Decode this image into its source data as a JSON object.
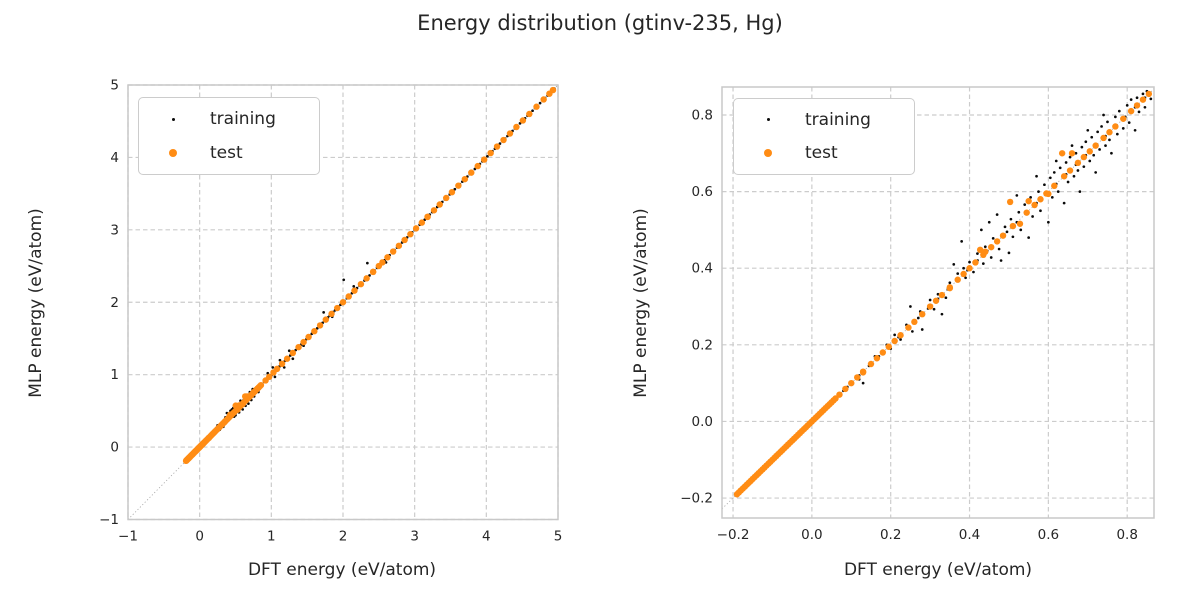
{
  "title": "Energy distribution (gtinv-235, Hg)",
  "colors": {
    "training": "#0a0a0a",
    "test": "#ff8c14",
    "grid": "#cccccc",
    "spine": "#c8c8c8",
    "text": "#262626",
    "diagonal_line": "#a6a6a6",
    "background": "#ffffff"
  },
  "legend": {
    "items": [
      {
        "label": "training",
        "marker": "small-black-dot"
      },
      {
        "label": "test",
        "marker": "orange-dot"
      }
    ]
  },
  "chart_data": {
    "type": "scatter",
    "title": "Energy distribution (gtinv-235, Hg)",
    "description": "Two parity scatter panels of MLP vs DFT energy; both panels show the same two series, right panel is a zoom of the low-energy region. Points with y equal to x are stored in on_diagonal_x; deviating points in scatter_points.",
    "panels": [
      {
        "xlabel": "DFT energy (eV/atom)",
        "ylabel": "MLP energy (eV/atom)",
        "xlim": [
          -1,
          5
        ],
        "ylim": [
          -1,
          5
        ],
        "xticks": [
          -1,
          0,
          1,
          2,
          3,
          4,
          5
        ],
        "xtick_labels": [
          "−1",
          "0",
          "1",
          "2",
          "3",
          "4",
          "5"
        ],
        "yticks": [
          -1,
          0,
          1,
          2,
          3,
          4,
          5
        ],
        "ytick_labels": [
          "−1",
          "0",
          "1",
          "2",
          "3",
          "4",
          "5"
        ],
        "grid": true,
        "diagonal_reference_line": true,
        "legend_position": "upper left"
      },
      {
        "xlabel": "DFT energy (eV/atom)",
        "ylabel": "MLP energy (eV/atom)",
        "xlim": [
          -0.228,
          0.868
        ],
        "ylim": [
          -0.252,
          0.873
        ],
        "xticks": [
          -0.2,
          0.0,
          0.2,
          0.4,
          0.6,
          0.8
        ],
        "xtick_labels": [
          "−0.2",
          "0.0",
          "0.2",
          "0.4",
          "0.6",
          "0.8"
        ],
        "yticks": [
          -0.2,
          0.0,
          0.2,
          0.4,
          0.6,
          0.8
        ],
        "ytick_labels": [
          "−0.2",
          "0.0",
          "0.2",
          "0.4",
          "0.6",
          "0.8"
        ],
        "grid": true,
        "diagonal_reference_line": true,
        "legend_position": "upper left"
      }
    ],
    "series": [
      {
        "name": "training",
        "color": "#0a0a0a",
        "marker_radius_px": 1.35,
        "on_diagonal_x": [
          -0.19,
          -0.18,
          -0.17,
          -0.16,
          -0.15,
          -0.14,
          -0.13,
          -0.12,
          -0.11,
          -0.1,
          -0.09,
          -0.08,
          -0.07,
          -0.06,
          -0.05,
          -0.04,
          -0.03,
          -0.02,
          -0.01,
          0,
          0.01,
          0.02,
          0.03,
          0.04,
          0.05,
          0.06,
          0.07,
          0.08,
          0.09,
          0.1,
          0.12,
          0.145,
          0.17,
          0.195,
          0.22,
          0.245,
          0.27,
          0.295,
          0.32,
          0.345,
          0.37,
          0.395,
          0.42,
          0.445,
          0.47,
          0.495,
          0.52,
          0.545,
          0.57,
          0.595,
          0.62,
          0.645,
          0.67,
          0.695,
          0.72,
          0.745,
          0.77,
          0.795,
          0.82,
          0.845,
          0.87,
          0.9,
          0.93,
          0.955,
          0.985,
          1.01,
          1.04,
          1.065,
          1.09,
          1.115,
          1.14,
          1.165,
          1.19,
          1.215,
          1.24,
          1.265,
          1.29,
          1.315,
          1.34,
          1.365,
          1.39,
          1.415,
          1.44,
          1.465,
          1.49,
          1.515,
          1.54,
          1.565,
          1.59,
          1.615,
          1.64,
          1.665,
          1.69,
          1.715,
          1.74,
          1.765,
          1.79,
          1.815,
          1.84,
          1.865,
          1.89,
          1.915,
          1.94,
          1.965,
          1.99,
          2.02,
          2.055,
          2.09,
          2.125,
          2.16,
          2.195,
          2.23,
          2.265,
          2.3,
          2.335,
          2.37,
          2.405,
          2.44,
          2.475,
          2.51,
          2.545,
          2.58,
          2.615,
          2.65,
          2.685,
          2.72,
          2.755,
          2.79,
          2.825,
          2.86,
          2.895,
          2.93,
          2.965,
          3.0,
          3.035,
          3.07,
          3.105,
          3.14,
          3.175,
          3.21,
          3.245,
          3.28,
          3.315,
          3.35,
          3.385,
          3.42,
          3.455,
          3.49,
          3.525,
          3.56,
          3.595,
          3.63,
          3.665,
          3.7,
          3.735,
          3.77,
          3.805,
          3.84,
          3.875,
          3.91,
          3.945,
          3.98,
          4.015,
          4.05,
          4.085,
          4.12,
          4.155,
          4.19,
          4.225,
          4.26,
          4.295,
          4.33,
          4.365,
          4.4,
          4.435,
          4.47,
          4.505,
          4.54,
          4.575,
          4.61,
          4.645,
          4.68,
          4.715,
          4.75,
          4.785,
          4.82,
          4.855,
          4.89,
          4.925,
          4.95
        ],
        "scatter_points": [
          [
            0.12,
            0.11
          ],
          [
            0.13,
            0.1
          ],
          [
            0.16,
            0.17
          ],
          [
            0.19,
            0.2
          ],
          [
            0.2,
            0.19
          ],
          [
            0.21,
            0.226
          ],
          [
            0.225,
            0.214
          ],
          [
            0.24,
            0.252
          ],
          [
            0.25,
            0.3
          ],
          [
            0.255,
            0.235
          ],
          [
            0.275,
            0.287
          ],
          [
            0.28,
            0.24
          ],
          [
            0.3,
            0.317
          ],
          [
            0.31,
            0.293
          ],
          [
            0.32,
            0.332
          ],
          [
            0.33,
            0.28
          ],
          [
            0.34,
            0.323
          ],
          [
            0.35,
            0.362
          ],
          [
            0.36,
            0.41
          ],
          [
            0.37,
            0.386
          ],
          [
            0.38,
            0.47
          ],
          [
            0.385,
            0.4
          ],
          [
            0.39,
            0.375
          ],
          [
            0.4,
            0.416
          ],
          [
            0.41,
            0.39
          ],
          [
            0.42,
            0.438
          ],
          [
            0.43,
            0.5
          ],
          [
            0.435,
            0.412
          ],
          [
            0.44,
            0.456
          ],
          [
            0.45,
            0.52
          ],
          [
            0.455,
            0.428
          ],
          [
            0.46,
            0.478
          ],
          [
            0.47,
            0.54
          ],
          [
            0.475,
            0.45
          ],
          [
            0.48,
            0.42
          ],
          [
            0.49,
            0.508
          ],
          [
            0.5,
            0.44
          ],
          [
            0.505,
            0.528
          ],
          [
            0.51,
            0.482
          ],
          [
            0.52,
            0.59
          ],
          [
            0.525,
            0.546
          ],
          [
            0.53,
            0.5
          ],
          [
            0.54,
            0.566
          ],
          [
            0.55,
            0.48
          ],
          [
            0.555,
            0.585
          ],
          [
            0.56,
            0.535
          ],
          [
            0.57,
            0.64
          ],
          [
            0.575,
            0.6
          ],
          [
            0.58,
            0.55
          ],
          [
            0.59,
            0.618
          ],
          [
            0.6,
            0.52
          ],
          [
            0.605,
            0.636
          ],
          [
            0.61,
            0.585
          ],
          [
            0.615,
            0.65
          ],
          [
            0.62,
            0.68
          ],
          [
            0.625,
            0.6
          ],
          [
            0.63,
            0.662
          ],
          [
            0.64,
            0.57
          ],
          [
            0.645,
            0.676
          ],
          [
            0.65,
            0.625
          ],
          [
            0.655,
            0.69
          ],
          [
            0.66,
            0.72
          ],
          [
            0.665,
            0.64
          ],
          [
            0.67,
            0.7
          ],
          [
            0.675,
            0.655
          ],
          [
            0.68,
            0.6
          ],
          [
            0.685,
            0.716
          ],
          [
            0.69,
            0.665
          ],
          [
            0.695,
            0.73
          ],
          [
            0.7,
            0.76
          ],
          [
            0.705,
            0.68
          ],
          [
            0.71,
            0.742
          ],
          [
            0.715,
            0.695
          ],
          [
            0.72,
            0.65
          ],
          [
            0.725,
            0.756
          ],
          [
            0.73,
            0.71
          ],
          [
            0.735,
            0.77
          ],
          [
            0.74,
            0.8
          ],
          [
            0.745,
            0.72
          ],
          [
            0.75,
            0.782
          ],
          [
            0.755,
            0.735
          ],
          [
            0.76,
            0.7
          ],
          [
            0.77,
            0.795
          ],
          [
            0.775,
            0.75
          ],
          [
            0.78,
            0.81
          ],
          [
            0.79,
            0.765
          ],
          [
            0.8,
            0.825
          ],
          [
            0.805,
            0.78
          ],
          [
            0.81,
            0.84
          ],
          [
            0.82,
            0.76
          ],
          [
            0.825,
            0.845
          ],
          [
            0.83,
            0.808
          ],
          [
            0.84,
            0.855
          ],
          [
            0.845,
            0.82
          ],
          [
            0.85,
            0.862
          ],
          [
            0.86,
            0.842
          ],
          [
            0.95,
            1.02
          ],
          [
            1.0,
            0.99
          ],
          [
            1.02,
            1.1
          ],
          [
            1.05,
            0.97
          ],
          [
            1.12,
            1.2
          ],
          [
            1.18,
            1.1
          ],
          [
            1.25,
            1.33
          ],
          [
            1.3,
            1.22
          ],
          [
            1.45,
            1.4
          ],
          [
            1.73,
            1.86
          ],
          [
            1.85,
            1.8
          ],
          [
            2.01,
            2.31
          ],
          [
            2.15,
            2.22
          ],
          [
            2.34,
            2.54
          ],
          [
            2.6,
            2.55
          ]
        ]
      },
      {
        "name": "test",
        "color": "#ff8c14",
        "marker_radius_px": 3.2,
        "on_diagonal_x": [
          -0.19,
          -0.185,
          -0.18,
          -0.175,
          -0.17,
          -0.165,
          -0.16,
          -0.155,
          -0.15,
          -0.145,
          -0.14,
          -0.135,
          -0.13,
          -0.125,
          -0.12,
          -0.115,
          -0.11,
          -0.105,
          -0.1,
          -0.095,
          -0.09,
          -0.085,
          -0.08,
          -0.075,
          -0.07,
          -0.065,
          -0.06,
          -0.055,
          -0.05,
          -0.045,
          -0.04,
          -0.035,
          -0.03,
          -0.025,
          -0.02,
          -0.015,
          -0.01,
          -0.005,
          0,
          0.005,
          0.01,
          0.015,
          0.02,
          0.025,
          0.03,
          0.035,
          0.04,
          0.045,
          0.05,
          0.055,
          0.06,
          0.07,
          0.085,
          0.1,
          0.115,
          0.13,
          0.15,
          0.165,
          0.18,
          0.195,
          0.21,
          0.225,
          0.245,
          0.26,
          0.28,
          0.3,
          0.315,
          0.33,
          0.35,
          0.37,
          0.385,
          0.4,
          0.415,
          0.435,
          0.455,
          0.47,
          0.485,
          0.51,
          0.545,
          0.565,
          0.58,
          0.595,
          0.615,
          0.64,
          0.655,
          0.675,
          0.69,
          0.705,
          0.72,
          0.74,
          0.755,
          0.77,
          0.79,
          0.81,
          0.825,
          0.84,
          0.855,
          0.92,
          0.97,
          1.03,
          1.08,
          1.15,
          1.22,
          1.3,
          1.38,
          1.45,
          1.52,
          1.6,
          1.68,
          1.76,
          1.84,
          1.92,
          2.0,
          2.08,
          2.16,
          2.25,
          2.33,
          2.42,
          2.5,
          2.55,
          2.62,
          2.7,
          2.78,
          2.86,
          2.94,
          3.02,
          3.1,
          3.18,
          3.27,
          3.35,
          3.44,
          3.52,
          3.61,
          3.7,
          3.79,
          3.88,
          3.97,
          4.06,
          4.15,
          4.24,
          4.33,
          4.42,
          4.51,
          4.6,
          4.7,
          4.8,
          4.88,
          4.93
        ],
        "scatter_points": [
          [
            0.13,
            0.128
          ],
          [
            0.35,
            0.348
          ],
          [
            0.427,
            0.448
          ],
          [
            0.44,
            0.443
          ],
          [
            0.503,
            0.573
          ],
          [
            0.528,
            0.516
          ],
          [
            0.55,
            0.575
          ],
          [
            0.6,
            0.594
          ],
          [
            0.635,
            0.7
          ],
          [
            0.66,
            0.7
          ],
          [
            2.42,
            2.418
          ],
          [
            3.18,
            3.178
          ]
        ]
      }
    ]
  }
}
